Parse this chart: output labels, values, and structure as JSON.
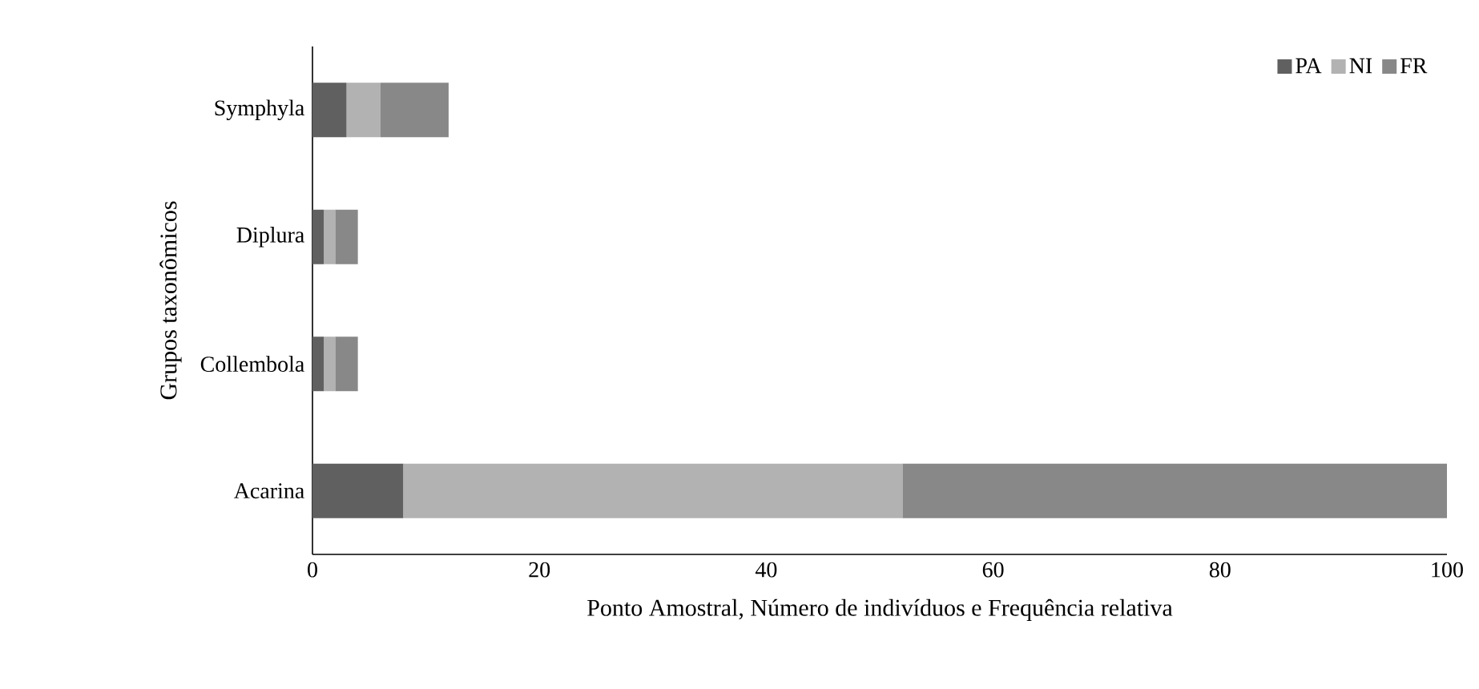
{
  "chart_data": {
    "type": "bar",
    "orientation": "horizontal",
    "stacked": true,
    "xlabel": "Ponto Amostral, Número de indivíduos e Frequência relativa",
    "ylabel": "Grupos taxonômicos",
    "categories": [
      "Symphyla",
      "Diplura",
      "Collembola",
      "Acarina"
    ],
    "series": [
      {
        "name": "PA",
        "color": "#606060",
        "values": [
          3,
          1,
          1,
          8
        ]
      },
      {
        "name": "NI",
        "color": "#b2b2b2",
        "values": [
          3,
          1,
          1,
          44
        ]
      },
      {
        "name": "FR",
        "color": "#888888",
        "values": [
          6,
          2,
          2,
          48
        ]
      }
    ],
    "xlim": [
      0,
      100
    ],
    "xticks": [
      0,
      20,
      40,
      60,
      80,
      100
    ],
    "grid": false,
    "legend": "top right"
  }
}
